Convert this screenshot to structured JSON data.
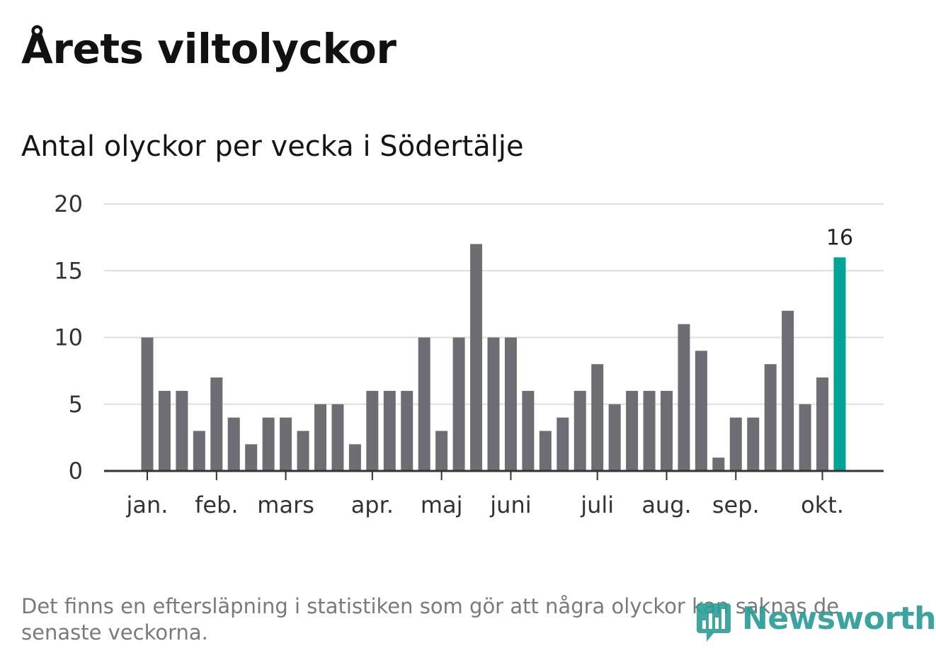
{
  "title": "Årets viltolyckor",
  "subtitle": "Antal olyckor per vecka i Södertälje",
  "footnote": "Det finns en eftersläpning i statistiken som gör att några olyckor kan saknas de senaste veckorna.",
  "brand": {
    "name": "Newsworthy",
    "icon": "newsworthy-bar-chart-icon",
    "color": "#2c9d96"
  },
  "colors": {
    "bar": "#6e6d73",
    "highlight": "#00a396",
    "grid": "#dddddd",
    "axis": "#333333"
  },
  "chart_data": {
    "type": "bar",
    "title": "Antal olyckor per vecka i Södertälje",
    "xlabel": "",
    "ylabel": "",
    "ylim": [
      0,
      20
    ],
    "yticks": [
      0,
      5,
      10,
      15,
      20
    ],
    "grid": true,
    "weeks": [
      1,
      2,
      3,
      4,
      5,
      6,
      7,
      8,
      9,
      10,
      11,
      12,
      13,
      14,
      15,
      16,
      17,
      18,
      19,
      20,
      21,
      22,
      23,
      24,
      25,
      26,
      27,
      28,
      29,
      30,
      31,
      32,
      33,
      34,
      35,
      36,
      37,
      38,
      39,
      40,
      41
    ],
    "values": [
      10,
      6,
      6,
      3,
      7,
      4,
      2,
      4,
      4,
      3,
      5,
      5,
      2,
      6,
      6,
      6,
      10,
      3,
      10,
      17,
      10,
      10,
      6,
      3,
      4,
      6,
      8,
      5,
      6,
      6,
      6,
      11,
      9,
      1,
      4,
      4,
      8,
      12,
      5,
      7,
      16
    ],
    "highlight_index": 40,
    "highlight_label": "16",
    "month_ticks": [
      {
        "label": "jan.",
        "week": 1
      },
      {
        "label": "feb.",
        "week": 5
      },
      {
        "label": "mars",
        "week": 9
      },
      {
        "label": "apr.",
        "week": 14
      },
      {
        "label": "maj",
        "week": 18
      },
      {
        "label": "juni",
        "week": 22
      },
      {
        "label": "juli",
        "week": 27
      },
      {
        "label": "aug.",
        "week": 31
      },
      {
        "label": "sep.",
        "week": 35
      },
      {
        "label": "okt.",
        "week": 40
      }
    ]
  }
}
